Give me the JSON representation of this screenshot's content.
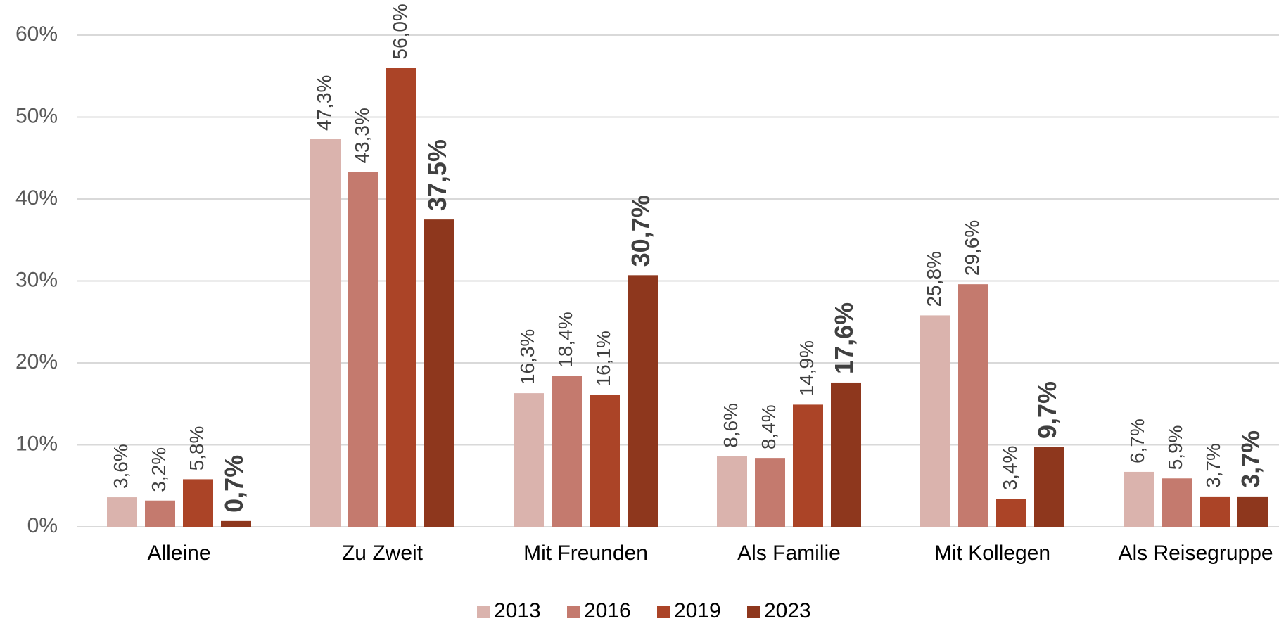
{
  "chart_data": {
    "type": "bar",
    "categories": [
      "Alleine",
      "Zu Zweit",
      "Mit Freunden",
      "Als Familie",
      "Mit Kollegen",
      "Als Reisegruppe"
    ],
    "series": [
      {
        "name": "2013",
        "color": "#dab3ad",
        "values": [
          3.6,
          47.3,
          16.3,
          8.6,
          25.8,
          6.7
        ],
        "value_labels": [
          "3,6%",
          "47,3%",
          "16,3%",
          "8,6%",
          "25,8%",
          "6,7%"
        ]
      },
      {
        "name": "2016",
        "color": "#c47a6e",
        "values": [
          3.2,
          43.3,
          18.4,
          8.4,
          29.6,
          5.9
        ],
        "value_labels": [
          "3,2%",
          "43,3%",
          "18,4%",
          "8,4%",
          "29,6%",
          "5,9%"
        ]
      },
      {
        "name": "2019",
        "color": "#ab4427",
        "values": [
          5.8,
          56.0,
          16.1,
          14.9,
          3.4,
          3.7
        ],
        "value_labels": [
          "5,8%",
          "56,0%",
          "16,1%",
          "14,9%",
          "3,4%",
          "3,7%"
        ]
      },
      {
        "name": "2023",
        "color": "#8e371d",
        "values": [
          0.7,
          37.5,
          30.7,
          17.6,
          9.7,
          3.7
        ],
        "value_labels": [
          "0,7%",
          "37,5%",
          "30,7%",
          "17,6%",
          "9,7%",
          "3,7%"
        ]
      }
    ],
    "ylim": [
      0,
      60
    ],
    "yticks": [
      {
        "value": 0,
        "label": "0%"
      },
      {
        "value": 10,
        "label": "10%"
      },
      {
        "value": 20,
        "label": "20%"
      },
      {
        "value": 30,
        "label": "30%"
      },
      {
        "value": 40,
        "label": "40%"
      },
      {
        "value": 50,
        "label": "50%"
      },
      {
        "value": 60,
        "label": "60%"
      }
    ],
    "grid": true,
    "legend": "bottom"
  }
}
